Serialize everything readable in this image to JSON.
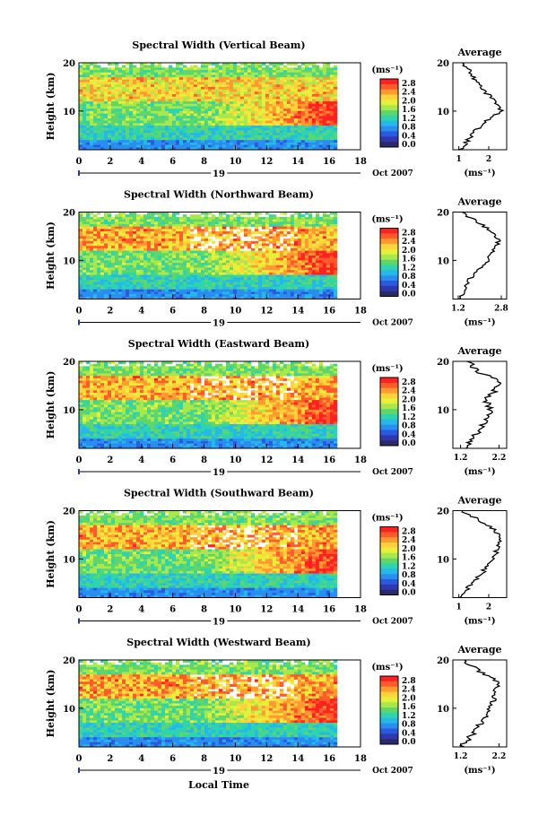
{
  "colorbar": {
    "unit_label": "(ms⁻¹)",
    "ticks": [
      "2.8",
      "2.4",
      "2.0",
      "1.6",
      "1.2",
      "0.8",
      "0.4",
      "0.0"
    ],
    "colors": [
      "#ff2020",
      "#ff5a2a",
      "#ff9a30",
      "#ffd23a",
      "#e6f03a",
      "#a8e84a",
      "#5fd66a",
      "#2ed3b0",
      "#25b8e8",
      "#2a8ef0",
      "#2a5ae0",
      "#3038b0",
      "#2a2a6a"
    ]
  },
  "x_axis": {
    "ticks": [
      "0",
      "2",
      "4",
      "6",
      "8",
      "10",
      "12",
      "14",
      "16",
      "18"
    ],
    "day_label": "19",
    "date_label": "Oct 2007",
    "xlabel": "Local Time"
  },
  "y_axis": {
    "ylabel": "Height (km)",
    "ticks": [
      "20",
      "10"
    ]
  },
  "avg_title": "Average",
  "avg_xlabel": "(ms⁻¹)",
  "chart_data": [
    {
      "type": "heatmap",
      "title": "Spectral Width (Vertical Beam)",
      "xlabel": "Local Time",
      "ylabel": "Height (km)",
      "xlim": [
        0,
        18
      ],
      "ylim": [
        2,
        20
      ],
      "zlim": [
        0.0,
        2.8
      ],
      "profile": {
        "type": "line",
        "title": "Average",
        "xlabel": "(ms⁻¹)",
        "xticks": [
          "1",
          "2"
        ],
        "xlim": [
          0.8,
          2.6
        ],
        "heights": [
          2,
          4,
          6,
          8,
          10,
          12,
          14,
          16,
          18,
          20
        ],
        "values": [
          1.05,
          1.3,
          1.55,
          1.9,
          2.4,
          2.25,
          1.85,
          1.6,
          1.4,
          1.1
        ]
      }
    },
    {
      "type": "heatmap",
      "title": "Spectral Width (Northward Beam)",
      "xlabel": "Local Time",
      "ylabel": "Height (km)",
      "xlim": [
        0,
        18
      ],
      "ylim": [
        2,
        20
      ],
      "zlim": [
        0.0,
        2.8
      ],
      "profile": {
        "type": "line",
        "title": "Average",
        "xlabel": "(ms⁻¹)",
        "xticks": [
          "1.2",
          "2.8"
        ],
        "xlim": [
          1.0,
          3.0
        ],
        "heights": [
          2,
          4,
          6,
          8,
          10,
          12,
          14,
          16,
          18,
          20
        ],
        "values": [
          1.25,
          1.4,
          1.6,
          1.95,
          2.3,
          2.5,
          2.7,
          2.45,
          1.9,
          1.3
        ]
      }
    },
    {
      "type": "heatmap",
      "title": "Spectral Width (Eastward Beam)",
      "xlabel": "Local Time",
      "ylabel": "Height (km)",
      "xlim": [
        0,
        18
      ],
      "ylim": [
        2,
        20
      ],
      "zlim": [
        0.0,
        2.8
      ],
      "profile": {
        "type": "line",
        "title": "Average",
        "xlabel": "(ms⁻¹)",
        "xticks": [
          "1.2",
          "2.2"
        ],
        "xlim": [
          1.0,
          2.4
        ],
        "heights": [
          2,
          4,
          6,
          8,
          10,
          12,
          14,
          16,
          18,
          20
        ],
        "values": [
          1.3,
          1.5,
          1.7,
          1.9,
          2.0,
          1.85,
          2.1,
          2.2,
          1.6,
          1.45
        ]
      }
    },
    {
      "type": "heatmap",
      "title": "Spectral Width (Southward Beam)",
      "xlabel": "Local Time",
      "ylabel": "Height (km)",
      "xlim": [
        0,
        18
      ],
      "ylim": [
        2,
        20
      ],
      "zlim": [
        0.0,
        2.8
      ],
      "profile": {
        "type": "line",
        "title": "Average",
        "xlabel": "(ms⁻¹)",
        "xticks": [
          "1",
          "2"
        ],
        "xlim": [
          0.8,
          2.6
        ],
        "heights": [
          2,
          4,
          6,
          8,
          10,
          12,
          14,
          16,
          18,
          20
        ],
        "values": [
          1.05,
          1.3,
          1.6,
          1.9,
          2.1,
          2.3,
          2.4,
          2.2,
          1.7,
          1.1
        ]
      }
    },
    {
      "type": "heatmap",
      "title": "Spectral Width (Westward Beam)",
      "xlabel": "Local Time",
      "ylabel": "Height (km)",
      "xlim": [
        0,
        18
      ],
      "ylim": [
        2,
        20
      ],
      "zlim": [
        0.0,
        2.8
      ],
      "profile": {
        "type": "line",
        "title": "Average",
        "xlabel": "(ms⁻¹)",
        "xticks": [
          "1.2",
          "2.2"
        ],
        "xlim": [
          1.0,
          2.4
        ],
        "heights": [
          2,
          4,
          6,
          8,
          10,
          12,
          14,
          16,
          18,
          20
        ],
        "values": [
          1.25,
          1.45,
          1.65,
          1.85,
          1.95,
          2.05,
          2.15,
          2.1,
          1.6,
          1.3
        ]
      }
    }
  ]
}
